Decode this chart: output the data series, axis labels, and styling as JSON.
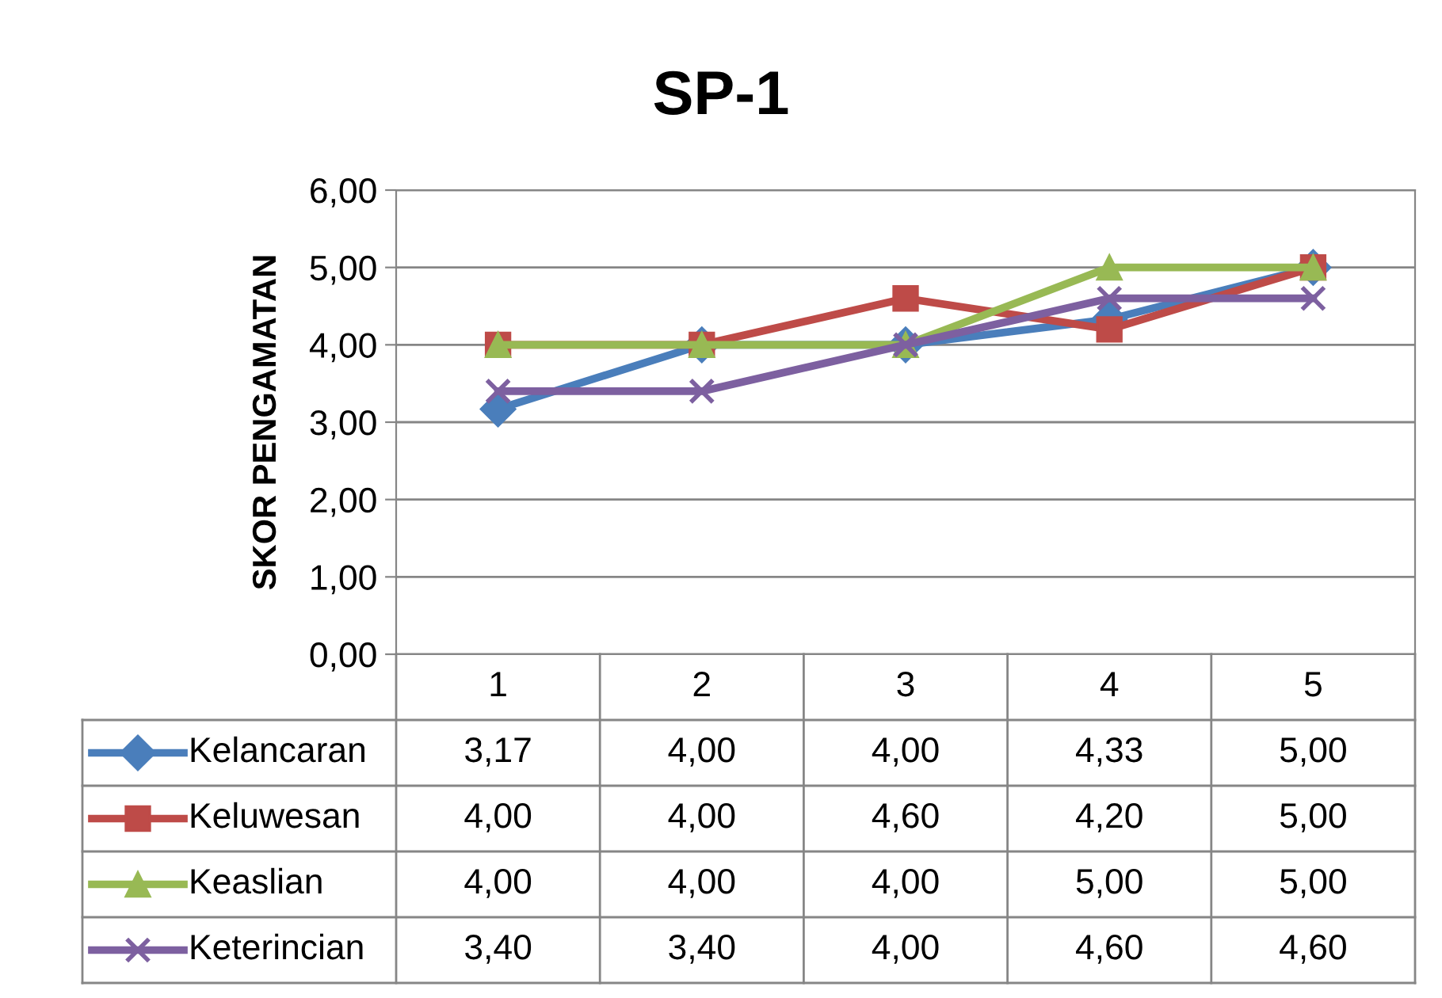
{
  "chart_data": {
    "type": "line",
    "title": "SP-1",
    "ylabel": "SKOR PENGAMATAN",
    "categories": [
      "1",
      "2",
      "3",
      "4",
      "5"
    ],
    "series": [
      {
        "name": "Kelancaran",
        "color": "#4a7ebb",
        "marker": "diamond",
        "values": [
          3.17,
          4.0,
          4.0,
          4.33,
          5.0
        ],
        "value_labels": [
          "3,17",
          "4,00",
          "4,00",
          "4,33",
          "5,00"
        ]
      },
      {
        "name": "Keluwesan",
        "color": "#be4b48",
        "marker": "square",
        "values": [
          4.0,
          4.0,
          4.6,
          4.2,
          5.0
        ],
        "value_labels": [
          "4,00",
          "4,00",
          "4,60",
          "4,20",
          "5,00"
        ]
      },
      {
        "name": "Keaslian",
        "color": "#98b954",
        "marker": "triangle",
        "values": [
          4.0,
          4.0,
          4.0,
          5.0,
          5.0
        ],
        "value_labels": [
          "4,00",
          "4,00",
          "4,00",
          "5,00",
          "5,00"
        ]
      },
      {
        "name": "Keterincian",
        "color": "#7d60a0",
        "marker": "cross",
        "values": [
          3.4,
          3.4,
          4.0,
          4.6,
          4.6
        ],
        "value_labels": [
          "3,40",
          "3,40",
          "4,00",
          "4,60",
          "4,60"
        ]
      }
    ],
    "ylim": [
      0,
      6
    ],
    "yticks": [
      {
        "value": 0,
        "label": "0,00"
      },
      {
        "value": 1,
        "label": "1,00"
      },
      {
        "value": 2,
        "label": "2,00"
      },
      {
        "value": 3,
        "label": "3,00"
      },
      {
        "value": 4,
        "label": "4,00"
      },
      {
        "value": 5,
        "label": "5,00"
      },
      {
        "value": 6,
        "label": "6,00"
      }
    ],
    "grid": "y",
    "legend": "bottom"
  }
}
